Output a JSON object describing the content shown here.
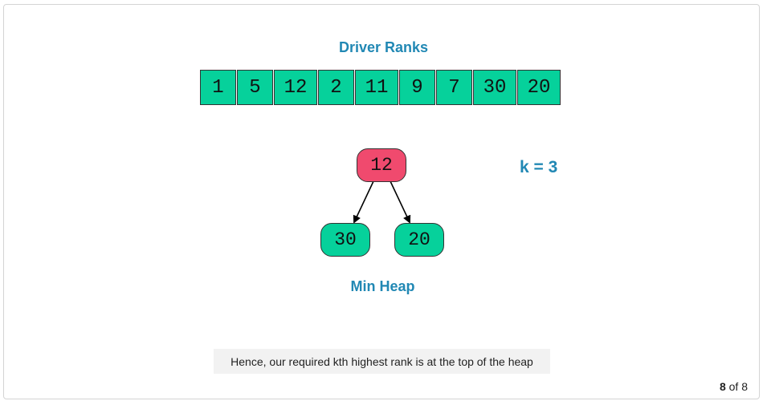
{
  "title": "Driver Ranks",
  "array": [
    "1",
    "5",
    "12",
    "2",
    "11",
    "9",
    "7",
    "30",
    "20"
  ],
  "heap": {
    "root": "12",
    "left": "30",
    "right": "20",
    "label": "Min Heap"
  },
  "k_label": "k = 3",
  "caption": "Hence, our required kth highest rank is at the top of the heap",
  "pager": {
    "current": "8",
    "of_text": "of 8"
  },
  "colors": {
    "accent": "#2188b4",
    "cell": "#06d19b",
    "root": "#f04a6e"
  }
}
